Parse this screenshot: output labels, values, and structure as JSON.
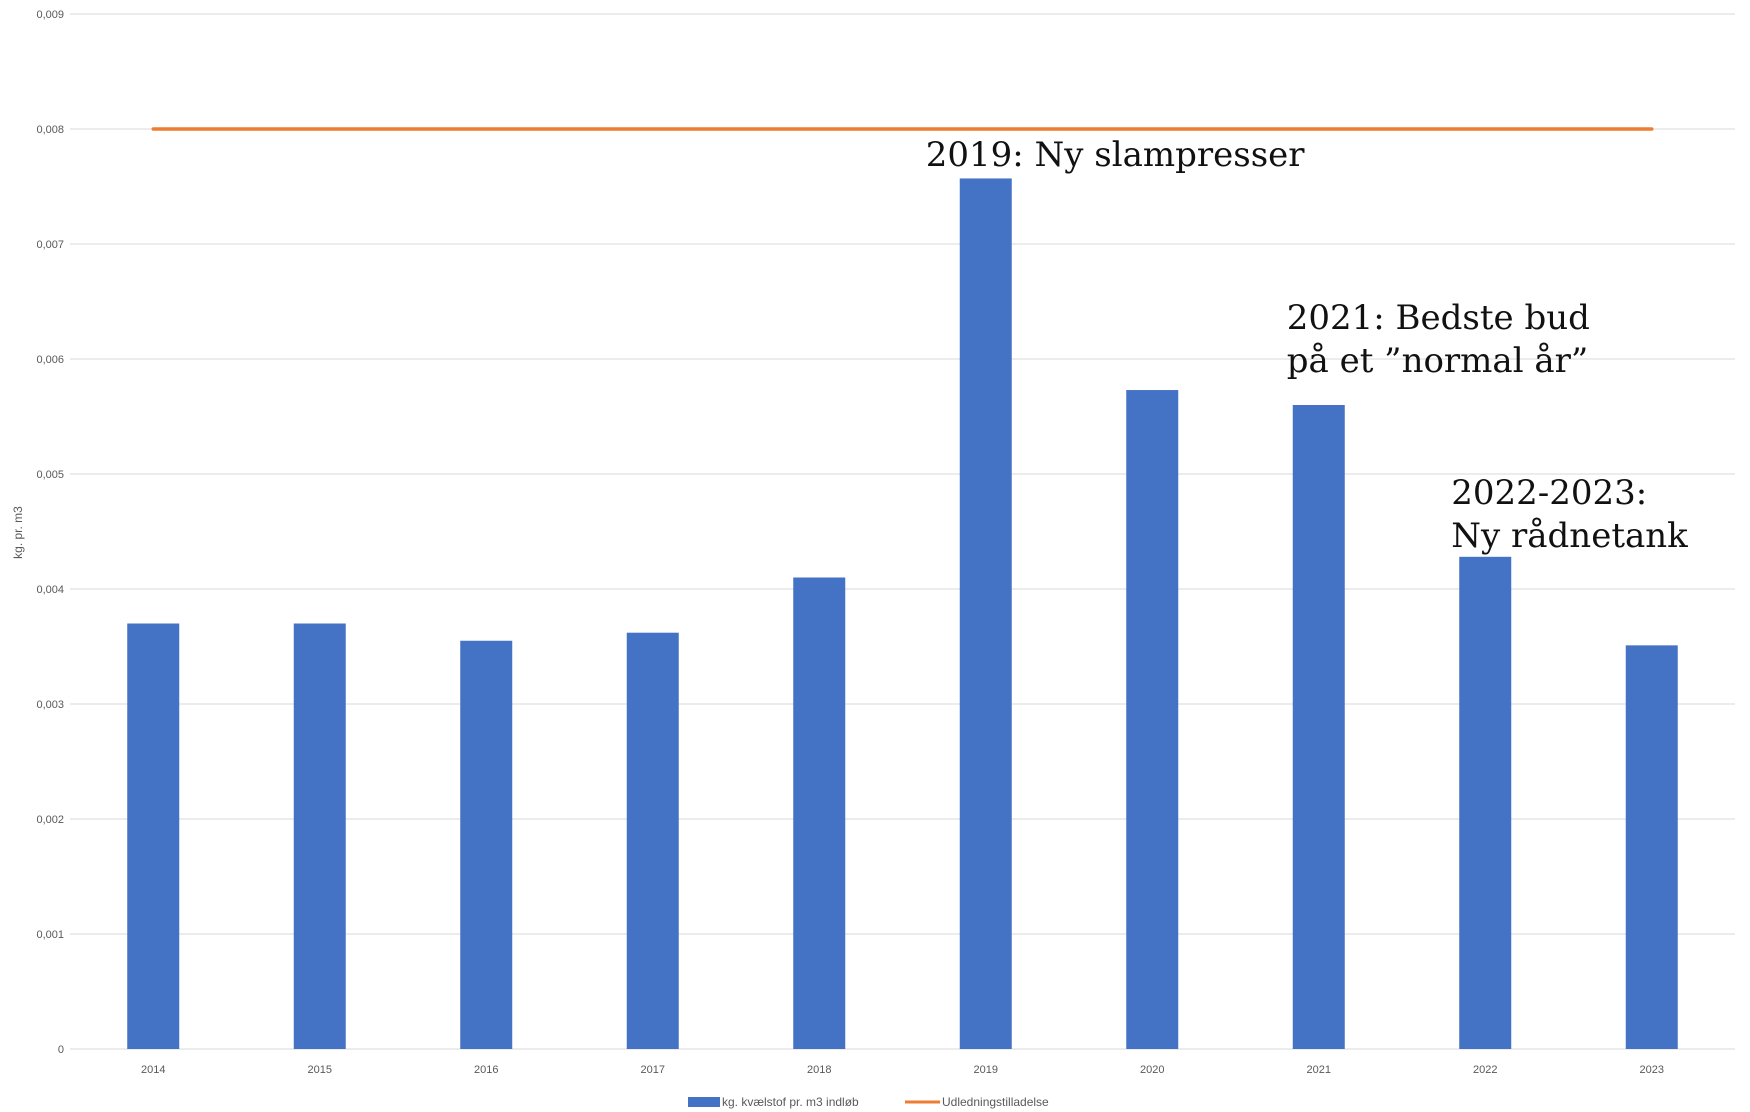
{
  "chart_data": {
    "type": "bar",
    "categories": [
      "2014",
      "2015",
      "2016",
      "2017",
      "2018",
      "2019",
      "2020",
      "2021",
      "2022",
      "2023"
    ],
    "series": [
      {
        "name": "kg. kvælstof pr. m3 indløb",
        "kind": "bar",
        "color": "#4472c4",
        "values": [
          0.0037,
          0.0037,
          0.00355,
          0.00362,
          0.0041,
          0.00757,
          0.00573,
          0.0056,
          0.00428,
          0.00351
        ]
      },
      {
        "name": "Udledningstilladelse",
        "kind": "line",
        "color": "#ed7d31",
        "values": [
          0.008,
          0.008,
          0.008,
          0.008,
          0.008,
          0.008,
          0.008,
          0.008,
          0.008,
          0.008
        ]
      }
    ],
    "ylabel": "kg. pr. m3",
    "xlabel": "",
    "ylim": [
      0,
      0.009
    ],
    "yticks": [
      0,
      0.001,
      0.002,
      0.003,
      0.004,
      0.005,
      0.006,
      0.007,
      0.008,
      0.009
    ],
    "ytick_labels": [
      "0",
      "0,001",
      "0,002",
      "0,003",
      "0,004",
      "0,005",
      "0,006",
      "0,007",
      "0,008",
      "0,009"
    ],
    "grid": true,
    "legend_position": "bottom",
    "annotations": [
      {
        "category": "2019",
        "lines": [
          "2019: Ny slampresser"
        ]
      },
      {
        "category": "2021",
        "lines": [
          "2021: Bedste bud",
          "på et ”normal år”"
        ]
      },
      {
        "category": "2022",
        "lines": [
          "2022-2023:",
          "Ny rådnetank"
        ]
      }
    ]
  }
}
